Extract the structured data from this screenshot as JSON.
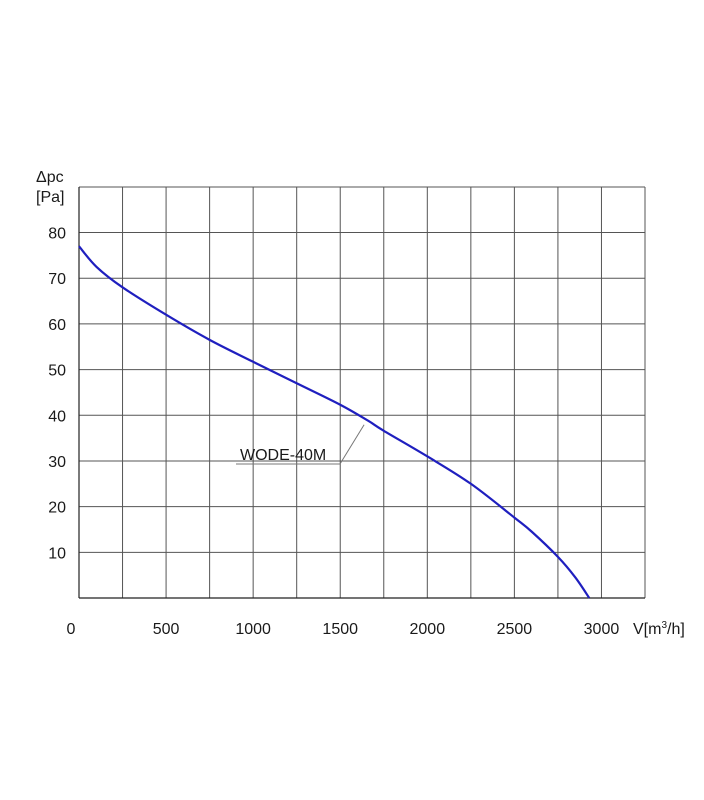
{
  "chart_data": {
    "type": "line",
    "ylabel_top": "Δpc",
    "ylabel_unit": "[Pa]",
    "xlabel_base": "V[m",
    "xlabel_sup": "3",
    "xlabel_tail": "/h]",
    "xlim": [
      0,
      3250
    ],
    "ylim": [
      0,
      80
    ],
    "x_ticks": [
      0,
      500,
      1000,
      1500,
      2000,
      2500,
      3000
    ],
    "y_ticks": [
      10,
      20,
      30,
      40,
      50,
      60,
      70,
      80
    ],
    "x_grid_step": 250,
    "y_grid_step": 10,
    "grid": true,
    "line_color": "#1f1fbf",
    "grid_color": "#555555",
    "series": [
      {
        "name": "WODE-40M",
        "x": [
          0,
          100,
          250,
          500,
          750,
          1000,
          1250,
          1500,
          1660,
          1750,
          2000,
          2250,
          2500,
          2600,
          2750,
          2850,
          2930
        ],
        "y": [
          77,
          72.5,
          68,
          62,
          56.5,
          51.7,
          47,
          42.3,
          38.8,
          36.6,
          31,
          25,
          17.6,
          14.5,
          9,
          4.5,
          0
        ]
      }
    ],
    "annotation": {
      "text": "WODE-40M",
      "x": 1660,
      "y": 38.8
    }
  }
}
